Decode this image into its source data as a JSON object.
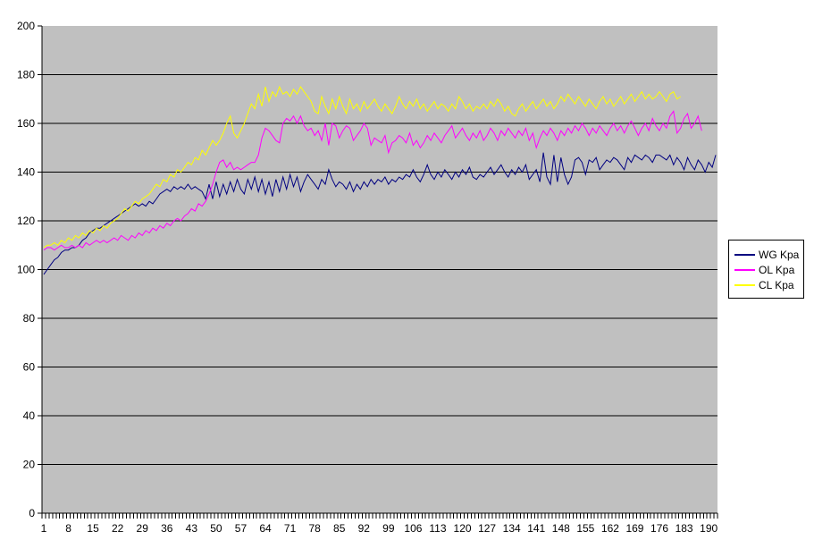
{
  "chart_data": {
    "type": "line",
    "title": "",
    "xlabel": "",
    "ylabel": "",
    "ylim": [
      0,
      200
    ],
    "y_tick_step": 20,
    "y_tick_labels": [
      0,
      20,
      40,
      60,
      80,
      100,
      120,
      140,
      160,
      180,
      200
    ],
    "x_tick_labels": [
      "1",
      "8",
      "15",
      "22",
      "29",
      "36",
      "43",
      "50",
      "57",
      "64",
      "71",
      "78",
      "85",
      "92",
      "99",
      "106",
      "113",
      "120",
      "127",
      "134",
      "141",
      "148",
      "155",
      "162",
      "169",
      "176",
      "183",
      "190"
    ],
    "x_label_interval": 7,
    "n_categories": 192,
    "grid": true,
    "legend_position": "right",
    "plot_bg": "#c0c0c0",
    "axis_color": "#000000",
    "series": [
      {
        "name": "WG Kpa",
        "color": "#000080",
        "values": [
          98,
          100,
          102,
          104,
          105,
          107,
          108,
          108,
          109,
          109,
          110,
          112,
          113,
          115,
          116,
          117,
          117,
          118,
          119,
          120,
          121,
          122,
          123,
          124,
          125,
          126,
          127,
          126,
          127,
          126,
          128,
          127,
          129,
          131,
          132,
          133,
          132,
          134,
          133,
          134,
          133,
          135,
          133,
          134,
          133,
          132,
          129,
          135,
          129,
          136,
          130,
          135,
          131,
          136,
          132,
          137,
          133,
          131,
          137,
          133,
          138,
          132,
          137,
          131,
          136,
          130,
          137,
          132,
          138,
          133,
          139,
          134,
          138,
          132,
          136,
          139,
          137,
          135,
          133,
          137,
          135,
          141,
          137,
          134,
          136,
          135,
          133,
          136,
          132,
          135,
          133,
          136,
          134,
          137,
          135,
          137,
          136,
          138,
          135,
          137,
          136,
          138,
          137,
          139,
          138,
          141,
          138,
          136,
          139,
          143,
          139,
          137,
          140,
          138,
          141,
          139,
          137,
          140,
          138,
          141,
          139,
          142,
          138,
          137,
          139,
          138,
          140,
          142,
          139,
          141,
          143,
          140,
          138,
          141,
          139,
          142,
          140,
          143,
          137,
          139,
          141,
          136,
          148,
          138,
          135,
          147,
          136,
          146,
          139,
          135,
          138,
          145,
          146,
          144,
          139,
          145,
          144,
          146,
          141,
          143,
          145,
          144,
          146,
          145,
          143,
          141,
          146,
          144,
          147,
          146,
          145,
          147,
          146,
          144,
          147,
          147,
          146,
          145,
          147,
          143,
          146,
          144,
          141,
          146,
          143,
          141,
          145,
          143,
          140,
          144,
          142,
          147
        ]
      },
      {
        "name": "OL Kpa",
        "color": "#ff00ff",
        "values": [
          108,
          109,
          109,
          108,
          109,
          110,
          109,
          109,
          110,
          109,
          110,
          109,
          111,
          110,
          111,
          112,
          111,
          112,
          111,
          112,
          113,
          112,
          114,
          113,
          112,
          114,
          113,
          115,
          114,
          116,
          115,
          117,
          116,
          118,
          117,
          119,
          118,
          120,
          121,
          120,
          122,
          123,
          125,
          124,
          127,
          126,
          128,
          131,
          135,
          140,
          144,
          145,
          142,
          144,
          141,
          142,
          141,
          142,
          143,
          144,
          144,
          147,
          154,
          158,
          157,
          155,
          153,
          152,
          160,
          162,
          161,
          163,
          160,
          163,
          159,
          157,
          158,
          155,
          157,
          153,
          160,
          151,
          160,
          159,
          154,
          157,
          159,
          158,
          153,
          155,
          157,
          160,
          158,
          151,
          154,
          153,
          152,
          155,
          148,
          152,
          153,
          155,
          154,
          152,
          156,
          151,
          153,
          150,
          152,
          155,
          153,
          156,
          154,
          152,
          155,
          157,
          159,
          154,
          156,
          158,
          155,
          153,
          156,
          154,
          157,
          153,
          155,
          158,
          156,
          153,
          157,
          155,
          158,
          156,
          154,
          157,
          155,
          158,
          153,
          156,
          150,
          154,
          157,
          155,
          158,
          156,
          153,
          157,
          155,
          158,
          156,
          159,
          157,
          160,
          158,
          155,
          158,
          156,
          159,
          157,
          155,
          158,
          160,
          157,
          159,
          156,
          159,
          161,
          158,
          155,
          158,
          160,
          157,
          162,
          159,
          157,
          160,
          158,
          163,
          165,
          156,
          158,
          162,
          164,
          158,
          160,
          163,
          157
        ]
      },
      {
        "name": "CL Kpa",
        "color": "#ffff00",
        "values": [
          109,
          110,
          110,
          111,
          110,
          112,
          111,
          113,
          112,
          114,
          113,
          115,
          114,
          116,
          115,
          117,
          116,
          118,
          117,
          119,
          120,
          121,
          123,
          125,
          124,
          126,
          128,
          127,
          129,
          130,
          131,
          133,
          135,
          134,
          137,
          136,
          139,
          138,
          141,
          140,
          142,
          144,
          143,
          146,
          145,
          149,
          147,
          150,
          153,
          151,
          153,
          156,
          160,
          163,
          156,
          154,
          157,
          160,
          164,
          168,
          166,
          172,
          167,
          175,
          169,
          173,
          171,
          175,
          172,
          173,
          171,
          174,
          172,
          175,
          173,
          171,
          169,
          165,
          164,
          171,
          167,
          164,
          170,
          166,
          171,
          167,
          164,
          170,
          166,
          168,
          165,
          169,
          166,
          168,
          170,
          167,
          165,
          168,
          166,
          164,
          167,
          171,
          168,
          166,
          169,
          167,
          170,
          166,
          168,
          165,
          167,
          169,
          166,
          168,
          167,
          165,
          168,
          166,
          171,
          169,
          166,
          168,
          165,
          167,
          166,
          168,
          166,
          169,
          167,
          170,
          168,
          165,
          167,
          164,
          163,
          166,
          168,
          165,
          167,
          169,
          166,
          168,
          170,
          167,
          169,
          166,
          168,
          171,
          169,
          172,
          170,
          168,
          171,
          169,
          167,
          170,
          168,
          166,
          169,
          171,
          168,
          170,
          167,
          169,
          171,
          168,
          170,
          172,
          169,
          171,
          173,
          170,
          172,
          170,
          171,
          173,
          171,
          169,
          172,
          173,
          170,
          171
        ]
      }
    ]
  },
  "legend": {
    "items": [
      "WG Kpa",
      "OL Kpa",
      "CL Kpa"
    ]
  }
}
